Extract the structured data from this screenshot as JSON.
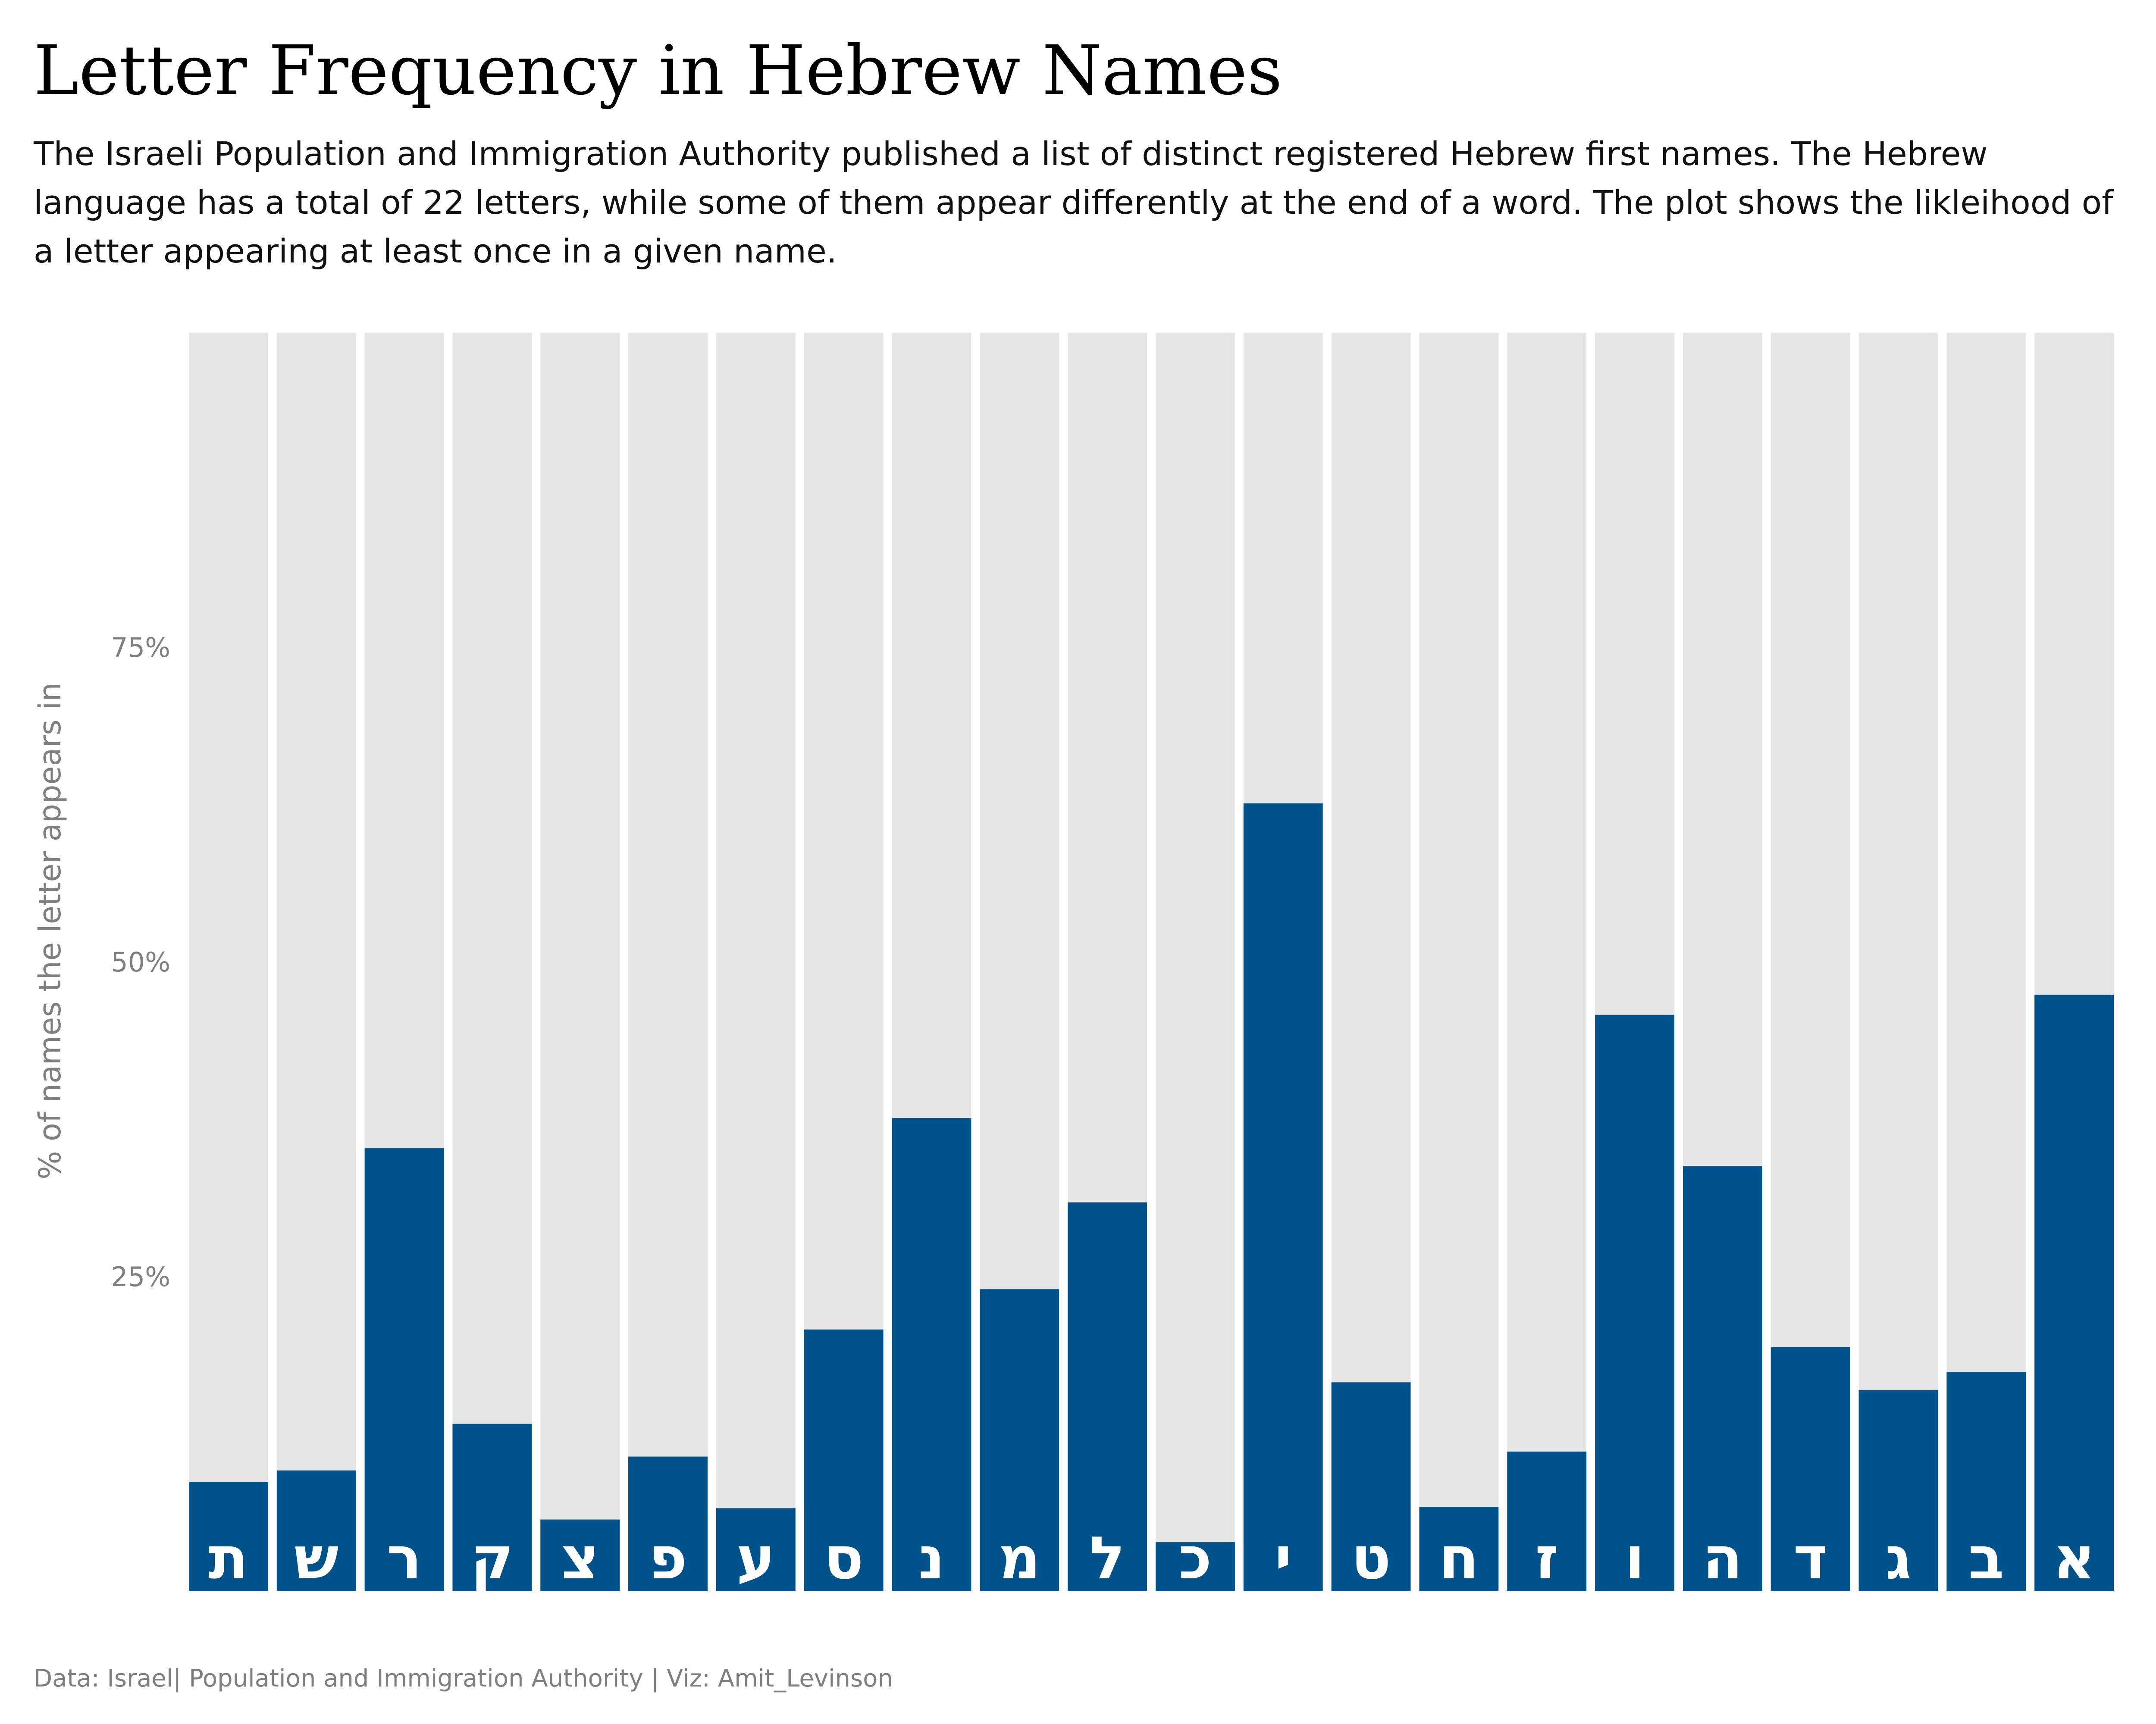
{
  "title": "Letter Frequency in Hebrew Names",
  "subtitle": "The Israeli Population and Immigration Authority published a list of distinct registered Hebrew first names. The Hebrew language has a total of 22 letters, while some of them appear differently at the end of a word. The plot shows the likleihood of a letter appearing at least once in a given name.",
  "caption": "Data: Israel| Population and Immigration Authority | Viz: Amit_Levinson",
  "colors": {
    "bar": "#00528A",
    "background_bar": "#E5E5E5",
    "axis_text": "#7F7F7F",
    "letter": "#FFFFFF"
  },
  "chart_data": {
    "type": "bar",
    "categories": [
      "ת",
      "ש",
      "ר",
      "ק",
      "צ",
      "פ",
      "ע",
      "ס",
      "נ",
      "מ",
      "ל",
      "כ",
      "י",
      "ט",
      "ח",
      "ז",
      "ו",
      "ה",
      "ד",
      "ג",
      "ב",
      "א"
    ],
    "values": [
      8.7,
      9.6,
      35.2,
      13.3,
      5.7,
      10.7,
      6.6,
      20.8,
      37.6,
      24.0,
      30.9,
      3.9,
      62.6,
      16.6,
      6.7,
      11.1,
      45.8,
      33.8,
      19.4,
      16.0,
      17.4,
      47.4
    ],
    "ylabel": "% of names the letter appears in",
    "xlabel": "",
    "ylim": [
      0,
      100
    ],
    "yticks": [
      25,
      50,
      75
    ],
    "ytick_labels": [
      "25%",
      "50%",
      "75%"
    ],
    "grid": false,
    "background_bars_value": 100
  }
}
